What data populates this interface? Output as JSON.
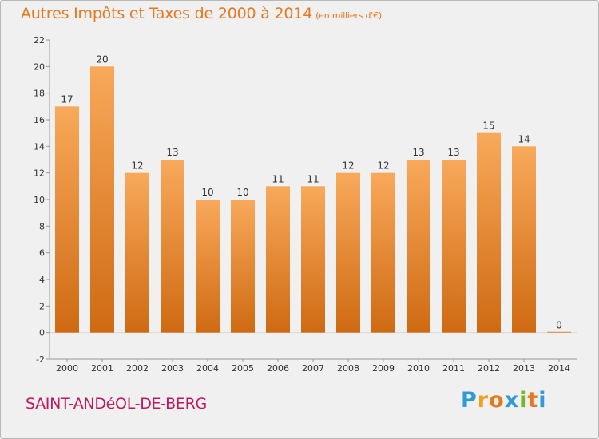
{
  "chart_data": {
    "type": "bar",
    "title": "Autres Impôts et Taxes de 2000 à 2014",
    "unit": "(en milliers d'€)",
    "categories": [
      "2000",
      "2001",
      "2002",
      "2003",
      "2004",
      "2005",
      "2006",
      "2007",
      "2008",
      "2009",
      "2010",
      "2011",
      "2012",
      "2013",
      "2014"
    ],
    "values": [
      17,
      20,
      12,
      13,
      10,
      10,
      11,
      11,
      12,
      12,
      13,
      13,
      15,
      14,
      0
    ],
    "ylim": [
      -2,
      22
    ],
    "yticks": [
      -2,
      0,
      2,
      4,
      6,
      8,
      10,
      12,
      14,
      16,
      18,
      20,
      22
    ],
    "grid": false,
    "bar_color": "#f0922e"
  },
  "town": "SAINT-ANDéOL-DE-BERG",
  "logo": {
    "letters": [
      "P",
      "r",
      "o",
      "x",
      "i",
      "t",
      "i"
    ],
    "colors": [
      "#2e9ad6",
      "#f0a020",
      "#e8781e",
      "#2e9ad6",
      "#7ab32e",
      "#e8781e",
      "#2e9ad6"
    ]
  }
}
